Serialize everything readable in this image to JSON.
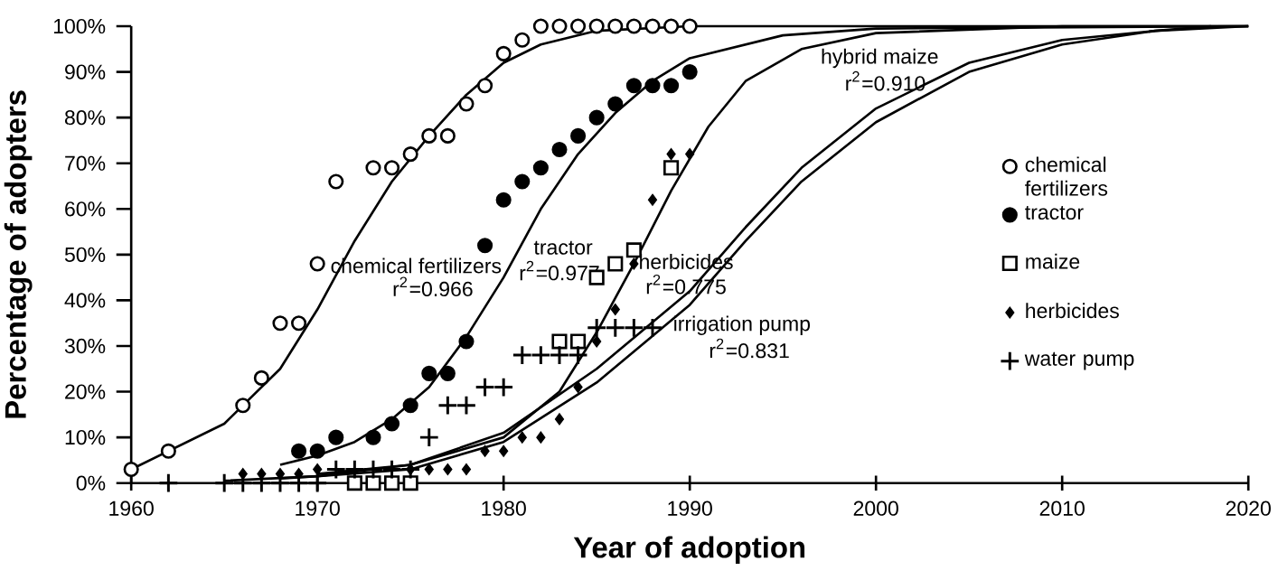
{
  "chart_data": {
    "type": "scatter",
    "xlabel": "Year of adoption",
    "ylabel": "Percentage of adopters",
    "xlim": [
      1960,
      2020
    ],
    "xticks": [
      1960,
      1970,
      1980,
      1990,
      2000,
      2010,
      2020
    ],
    "ylim": [
      0,
      100
    ],
    "yticks": [
      {
        "value": 0,
        "label": "0%"
      },
      {
        "value": 10,
        "label": "10%"
      },
      {
        "value": 20,
        "label": "20%"
      },
      {
        "value": 30,
        "label": "30%"
      },
      {
        "value": 40,
        "label": "40%"
      },
      {
        "value": 50,
        "label": "50%"
      },
      {
        "value": 60,
        "label": "60%"
      },
      {
        "value": 70,
        "label": "70%"
      },
      {
        "value": 80,
        "label": "80%"
      },
      {
        "value": 90,
        "label": "90%"
      },
      {
        "value": 100,
        "label": "100%"
      }
    ],
    "legend": "right",
    "grid": false,
    "series": [
      {
        "name": "chemical fertilizers",
        "color": "#000000",
        "marker": "open circle",
        "x": [
          1960,
          1962,
          1966,
          1967,
          1968,
          1969,
          1970,
          1971,
          1973,
          1974,
          1975,
          1976,
          1977,
          1978,
          1979,
          1980,
          1981,
          1982,
          1983,
          1984,
          1985,
          1986,
          1987,
          1988,
          1989,
          1990
        ],
        "values": [
          3,
          7,
          17,
          23,
          35,
          35,
          48,
          66,
          69,
          69,
          72,
          76,
          76,
          83,
          87,
          94,
          97,
          100,
          100,
          100,
          100,
          100,
          100,
          100,
          100,
          100
        ]
      },
      {
        "name": "tractor",
        "color": "#000000",
        "marker": "circle",
        "x": [
          1969,
          1970,
          1971,
          1973,
          1974,
          1975,
          1976,
          1977,
          1978,
          1979,
          1980,
          1981,
          1982,
          1983,
          1984,
          1985,
          1986,
          1987,
          1988,
          1989,
          1990
        ],
        "values": [
          7,
          7,
          10,
          10,
          13,
          17,
          24,
          24,
          31,
          52,
          62,
          66,
          69,
          73,
          76,
          80,
          83,
          87,
          87,
          87,
          90
        ]
      },
      {
        "name": "maize",
        "color": "#000000",
        "marker": "square",
        "x": [
          1972,
          1973,
          1974,
          1975,
          1983,
          1984,
          1985,
          1986,
          1987,
          1989
        ],
        "values": [
          0,
          0,
          0,
          0,
          31,
          31,
          45,
          48,
          51,
          69
        ]
      },
      {
        "name": "herbicides",
        "color": "#000000",
        "marker": "diamond",
        "x": [
          1966,
          1967,
          1968,
          1969,
          1970,
          1975,
          1976,
          1977,
          1978,
          1979,
          1980,
          1981,
          1982,
          1983,
          1984,
          1985,
          1986,
          1987,
          1988,
          1989,
          1990
        ],
        "values": [
          2,
          2,
          2,
          2,
          3,
          3,
          3,
          3,
          3,
          7,
          7,
          10,
          10,
          14,
          21,
          31,
          38,
          48,
          62,
          72,
          72
        ]
      },
      {
        "name": "water pump",
        "color": "#000000",
        "marker": "cross",
        "x": [
          1962,
          1965,
          1966,
          1967,
          1968,
          1969,
          1970,
          1971,
          1972,
          1973,
          1974,
          1975,
          1976,
          1977,
          1978,
          1979,
          1980,
          1981,
          1982,
          1983,
          1984,
          1985,
          1986,
          1987,
          1988
        ],
        "values": [
          0,
          0,
          0,
          0,
          0,
          0,
          0,
          3,
          3,
          3,
          3,
          3,
          10,
          17,
          17,
          21,
          21,
          28,
          28,
          28,
          28,
          34,
          34,
          34,
          34
        ]
      },
      {
        "type": "line",
        "color": "#000000",
        "marker": "none",
        "x": [
          1960,
          1965,
          1968,
          1970,
          1972,
          1974,
          1976,
          1978,
          1980,
          1982,
          1985,
          1990,
          2020
        ],
        "values": [
          3,
          13,
          25,
          38,
          53,
          66,
          76,
          85,
          92,
          96,
          99,
          100,
          100
        ]
      },
      {
        "type": "line",
        "color": "#000000",
        "marker": "none",
        "x": [
          1968,
          1970,
          1972,
          1974,
          1976,
          1978,
          1980,
          1982,
          1984,
          1986,
          1988,
          1990,
          1995,
          2000,
          2020
        ],
        "values": [
          4,
          6,
          9,
          14,
          21,
          32,
          45,
          60,
          72,
          81,
          88,
          93,
          98,
          99.5,
          100
        ]
      },
      {
        "type": "line",
        "color": "#000000",
        "marker": "none",
        "x": [
          1970,
          1975,
          1980,
          1983,
          1985,
          1987,
          1989,
          1991,
          1993,
          1996,
          2000,
          2010,
          2020
        ],
        "values": [
          2,
          4,
          10,
          20,
          33,
          48,
          64,
          78,
          88,
          95,
          98.5,
          100,
          100
        ]
      },
      {
        "type": "line",
        "color": "#000000",
        "marker": "none",
        "x": [
          1965,
          1970,
          1975,
          1980,
          1985,
          1990,
          1993,
          1996,
          2000,
          2005,
          2010,
          2015,
          2018
        ],
        "values": [
          0.5,
          1.5,
          4,
          11,
          25,
          42,
          56,
          69,
          82,
          92,
          97,
          99,
          100
        ]
      },
      {
        "type": "line",
        "color": "#000000",
        "marker": "none",
        "x": [
          1968,
          1970,
          1975,
          1980,
          1985,
          1990,
          1993,
          1996,
          2000,
          2005,
          2010,
          2015,
          2020
        ],
        "values": [
          1,
          1.5,
          3,
          9,
          22,
          39,
          53,
          66,
          79,
          90,
          96,
          99,
          100
        ]
      }
    ],
    "annotations": [
      "chemical fertilizers",
      "r$^{2}$=0.966",
      "tractor",
      "r$^{2}$=0.977",
      "herbicides",
      "r$^{2}$=0.775",
      "irrigation pump",
      "r$^{2}$=0.831",
      "hybrid maize",
      "r$^{2}$=0.910"
    ]
  }
}
